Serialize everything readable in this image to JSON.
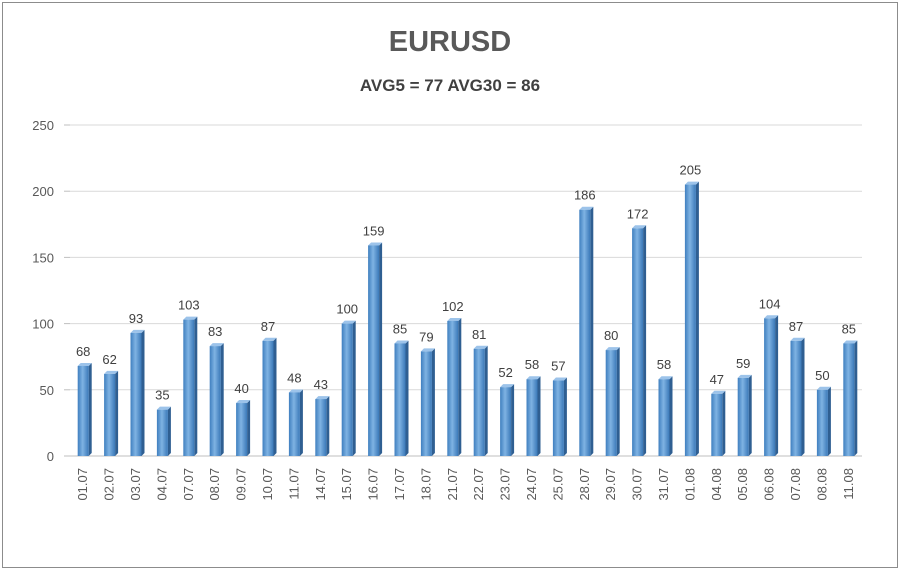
{
  "chart_data": {
    "type": "bar",
    "title": "EURUSD",
    "subtitle": "AVG5 = 77 AVG30 = 86",
    "categories": [
      "01.07",
      "02.07",
      "03.07",
      "04.07",
      "07.07",
      "08.07",
      "09.07",
      "10.07",
      "11.07",
      "14.07",
      "15.07",
      "16.07",
      "17.07",
      "18.07",
      "21.07",
      "22.07",
      "23.07",
      "24.07",
      "25.07",
      "28.07",
      "29.07",
      "30.07",
      "31.07",
      "01.08",
      "04.08",
      "05.08",
      "06.08",
      "07.08",
      "08.08",
      "11.08"
    ],
    "values": [
      68,
      62,
      93,
      35,
      103,
      83,
      40,
      87,
      48,
      43,
      100,
      159,
      85,
      79,
      102,
      81,
      52,
      58,
      57,
      186,
      80,
      172,
      58,
      205,
      47,
      59,
      104,
      87,
      50,
      85
    ],
    "ylim": [
      0,
      250
    ],
    "yticks": [
      0,
      50,
      100,
      150,
      200,
      250
    ],
    "grid": true,
    "bar_color": "#5b9bd5",
    "data_labels": true
  }
}
